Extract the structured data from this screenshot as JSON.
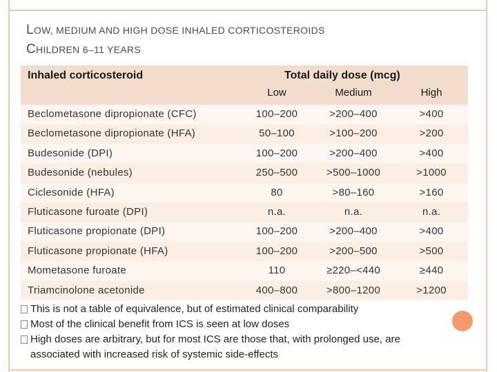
{
  "title": {
    "line1_cap": "L",
    "line1_rest": "OW, MEDIUM AND HIGH DOSE INHALED CORTICOSTEROIDS",
    "line2_cap": "C",
    "line2_rest": "HILDREN 6–11 YEARS"
  },
  "header": {
    "corticosteroid": "Inhaled corticosteroid",
    "total_dose": "Total daily dose (mcg)",
    "low": "Low",
    "medium": "Medium",
    "high": "High"
  },
  "rows": [
    {
      "name": "Beclometasone dipropionate (CFC)",
      "low": "100–200",
      "medium": ">200–400",
      "high": ">400"
    },
    {
      "name": "Beclometasone dipropionate (HFA)",
      "low": "50–100",
      "medium": ">100–200",
      "high": ">200"
    },
    {
      "name": "Budesonide (DPI)",
      "low": "100–200",
      "medium": ">200–400",
      "high": ">400"
    },
    {
      "name": "Budesonide (nebules)",
      "low": "250–500",
      "medium": ">500–1000",
      "high": ">1000"
    },
    {
      "name": "Ciclesonide (HFA)",
      "low": "80",
      "medium": ">80–160",
      "high": ">160"
    },
    {
      "name": "Fluticasone furoate (DPI)",
      "low": "n.a.",
      "medium": "n.a.",
      "high": "n.a."
    },
    {
      "name": "Fluticasone propionate (DPI)",
      "low": "100–200",
      "medium": ">200–400",
      "high": ">400"
    },
    {
      "name": "Fluticasone propionate (HFA)",
      "low": "100–200",
      "medium": ">200–500",
      "high": ">500"
    },
    {
      "name": "Mometasone furoate",
      "low": "110",
      "medium": "≥220–<440",
      "high": "≥440"
    },
    {
      "name": "Triamcinolone acetonide",
      "low": "400–800",
      "medium": ">800–1200",
      "high": ">1200"
    }
  ],
  "notes": [
    "This is not a table of equivalence, but of estimated clinical comparability",
    "Most of the clinical benefit from ICS is seen at low doses",
    "High doses are arbitrary, but for most ICS are those that, with prolonged use, are associated with increased risk of systemic side-effects"
  ],
  "colors": {
    "header_bg": "#f2dccb",
    "row_bg": "#fdf6f1",
    "row_alt_bg": "#fbeee4",
    "accent": "#f39a6b"
  }
}
